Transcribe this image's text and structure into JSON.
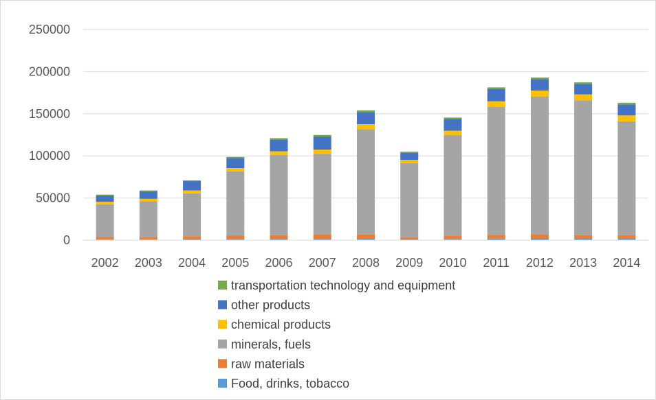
{
  "chart_data": {
    "type": "bar",
    "stacked": true,
    "title": "",
    "xlabel": "",
    "ylabel": "",
    "ylim": [
      0,
      250000
    ],
    "yticks": [
      0,
      50000,
      100000,
      150000,
      200000,
      250000
    ],
    "grid": true,
    "legend_position": "bottom",
    "categories": [
      "2002",
      "2003",
      "2004",
      "2005",
      "2006",
      "2007",
      "2008",
      "2009",
      "2010",
      "2011",
      "2012",
      "2013",
      "2014"
    ],
    "series": [
      {
        "name": "Food, drinks, tobacco",
        "color": "#5b9bd5",
        "values": [
          1000,
          1000,
          1200,
          1300,
          1500,
          1500,
          1600,
          1200,
          1400,
          1800,
          2000,
          2000,
          2000
        ]
      },
      {
        "name": "raw materials",
        "color": "#ed7d31",
        "values": [
          3000,
          2500,
          3500,
          4000,
          4500,
          5000,
          5000,
          2000,
          3500,
          4500,
          4500,
          4000,
          4000
        ]
      },
      {
        "name": "minerals, fuels",
        "color": "#a5a5a5",
        "values": [
          38500,
          42500,
          50800,
          76200,
          95000,
          96000,
          125000,
          88000,
          120000,
          152000,
          164000,
          160000,
          135000
        ]
      },
      {
        "name": "chemical products",
        "color": "#ffc000",
        "values": [
          3000,
          3000,
          3500,
          4000,
          4500,
          5000,
          6000,
          4000,
          5000,
          6500,
          7000,
          7000,
          7000
        ]
      },
      {
        "name": "other products",
        "color": "#4472c4",
        "values": [
          7500,
          9000,
          11000,
          12000,
          14000,
          15500,
          14500,
          8500,
          14000,
          14700,
          13500,
          12500,
          13000
        ]
      },
      {
        "name": "transportation technology and equipment",
        "color": "#70ad47",
        "values": [
          1000,
          1000,
          1000,
          1300,
          1500,
          1800,
          2000,
          1300,
          1600,
          1800,
          2000,
          1800,
          2000
        ]
      }
    ]
  }
}
